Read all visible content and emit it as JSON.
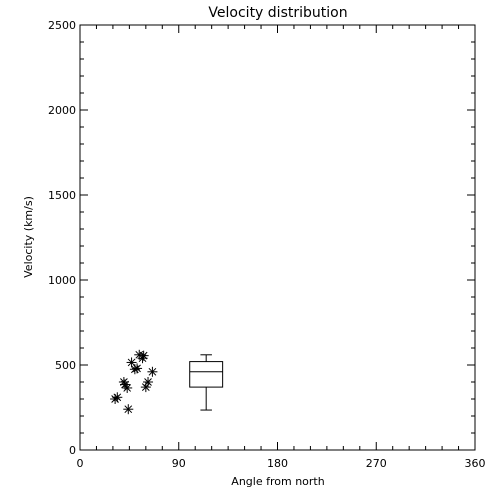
{
  "chart_data": {
    "type": "scatter",
    "title": "Velocity distribution",
    "xlabel": "Angle from north",
    "ylabel": "Velocity (km/s)",
    "xlim": [
      0,
      360
    ],
    "ylim": [
      0,
      2500
    ],
    "xticks": [
      0,
      90,
      180,
      270,
      360
    ],
    "yticks": [
      0,
      500,
      1000,
      1500,
      2000,
      2500
    ],
    "grid": false,
    "legend": "none",
    "marker": "asterisk",
    "points": [
      {
        "x": 32,
        "y": 300
      },
      {
        "x": 34,
        "y": 310
      },
      {
        "x": 40,
        "y": 400
      },
      {
        "x": 41,
        "y": 385
      },
      {
        "x": 43,
        "y": 365
      },
      {
        "x": 44,
        "y": 240
      },
      {
        "x": 47,
        "y": 515
      },
      {
        "x": 50,
        "y": 475
      },
      {
        "x": 52,
        "y": 480
      },
      {
        "x": 54,
        "y": 560
      },
      {
        "x": 57,
        "y": 540
      },
      {
        "x": 58,
        "y": 555
      },
      {
        "x": 60,
        "y": 370
      },
      {
        "x": 62,
        "y": 400
      },
      {
        "x": 66,
        "y": 460
      }
    ],
    "boxplot": {
      "x_center": 115,
      "x_width": 30,
      "min": 235,
      "q1": 370,
      "median": 460,
      "q3": 520,
      "max": 560
    }
  }
}
